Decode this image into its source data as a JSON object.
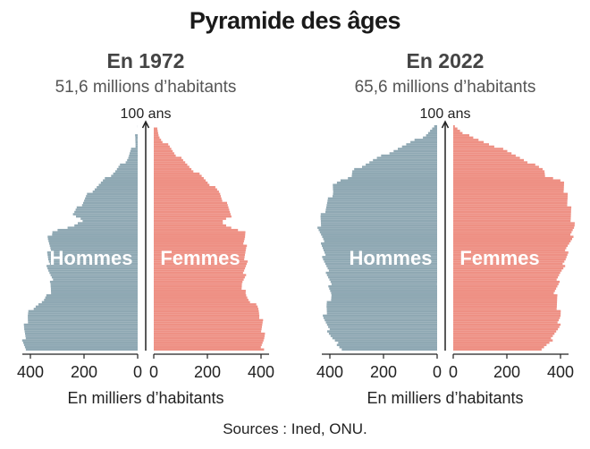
{
  "title": "Pyramide des âges",
  "sources": "Sources : Ined, ONU.",
  "colors": {
    "male": "#8fa8b3",
    "female": "#ee9084",
    "text": "#1a1a1a",
    "subtitle": "#555555"
  },
  "chart_data": [
    {
      "type": "bar",
      "orientation": "horizontal",
      "title": "En 1972",
      "subtitle": "51,6 millions d’habitants",
      "axis_top_label": "100 ans",
      "xlabel": "En milliers d’habitants",
      "xlim": [
        0,
        430
      ],
      "ticks": [
        400,
        200,
        0
      ],
      "ticks_right": [
        0,
        200,
        400
      ],
      "age_range": [
        0,
        100
      ],
      "series": [
        {
          "name": "Hommes",
          "side": "left",
          "knots": [
            [
              0,
              420
            ],
            [
              5,
              425
            ],
            [
              10,
              420
            ],
            [
              15,
              410
            ],
            [
              18,
              400
            ],
            [
              20,
              380
            ],
            [
              22,
              350
            ],
            [
              25,
              330
            ],
            [
              30,
              320
            ],
            [
              35,
              330
            ],
            [
              40,
              335
            ],
            [
              45,
              330
            ],
            [
              50,
              330
            ],
            [
              53,
              320
            ],
            [
              55,
              240
            ],
            [
              57,
              210
            ],
            [
              59,
              220
            ],
            [
              60,
              245
            ],
            [
              62,
              230
            ],
            [
              65,
              210
            ],
            [
              70,
              180
            ],
            [
              75,
              130
            ],
            [
              80,
              80
            ],
            [
              85,
              40
            ],
            [
              90,
              15
            ],
            [
              95,
              4
            ],
            [
              100,
              0
            ]
          ]
        },
        {
          "name": "Femmes",
          "side": "right",
          "knots": [
            [
              0,
              405
            ],
            [
              5,
              410
            ],
            [
              10,
              405
            ],
            [
              15,
              400
            ],
            [
              18,
              390
            ],
            [
              20,
              380
            ],
            [
              22,
              360
            ],
            [
              25,
              340
            ],
            [
              30,
              330
            ],
            [
              35,
              340
            ],
            [
              40,
              345
            ],
            [
              45,
              340
            ],
            [
              50,
              340
            ],
            [
              53,
              335
            ],
            [
              55,
              280
            ],
            [
              57,
              250
            ],
            [
              59,
              270
            ],
            [
              60,
              295
            ],
            [
              62,
              285
            ],
            [
              65,
              270
            ],
            [
              70,
              245
            ],
            [
              75,
              200
            ],
            [
              80,
              150
            ],
            [
              85,
              100
            ],
            [
              90,
              60
            ],
            [
              95,
              20
            ],
            [
              100,
              0
            ]
          ]
        }
      ]
    },
    {
      "type": "bar",
      "orientation": "horizontal",
      "title": "En 2022",
      "subtitle": "65,6 millions d’habitants",
      "axis_top_label": "100 ans",
      "xlabel": "En milliers d’habitants",
      "xlim": [
        0,
        430
      ],
      "ticks": [
        400,
        200,
        0
      ],
      "ticks_right": [
        0,
        200,
        400
      ],
      "age_range": [
        0,
        100
      ],
      "series": [
        {
          "name": "Hommes",
          "side": "left",
          "knots": [
            [
              0,
              350
            ],
            [
              3,
              370
            ],
            [
              5,
              390
            ],
            [
              10,
              410
            ],
            [
              15,
              420
            ],
            [
              20,
              410
            ],
            [
              25,
              395
            ],
            [
              30,
              400
            ],
            [
              35,
              410
            ],
            [
              40,
              420
            ],
            [
              45,
              425
            ],
            [
              50,
              430
            ],
            [
              55,
              440
            ],
            [
              60,
              430
            ],
            [
              65,
              410
            ],
            [
              70,
              390
            ],
            [
              75,
              380
            ],
            [
              77,
              320
            ],
            [
              80,
              310
            ],
            [
              85,
              230
            ],
            [
              90,
              140
            ],
            [
              95,
              50
            ],
            [
              100,
              0
            ]
          ]
        },
        {
          "name": "Femmes",
          "side": "right",
          "knots": [
            [
              0,
              330
            ],
            [
              3,
              350
            ],
            [
              5,
              370
            ],
            [
              10,
              390
            ],
            [
              15,
              400
            ],
            [
              20,
              390
            ],
            [
              25,
              380
            ],
            [
              30,
              390
            ],
            [
              35,
              400
            ],
            [
              40,
              420
            ],
            [
              45,
              425
            ],
            [
              50,
              440
            ],
            [
              55,
              450
            ],
            [
              60,
              440
            ],
            [
              65,
              430
            ],
            [
              70,
              420
            ],
            [
              75,
              410
            ],
            [
              77,
              350
            ],
            [
              80,
              340
            ],
            [
              85,
              260
            ],
            [
              90,
              170
            ],
            [
              95,
              60
            ],
            [
              100,
              0
            ]
          ]
        }
      ]
    }
  ]
}
